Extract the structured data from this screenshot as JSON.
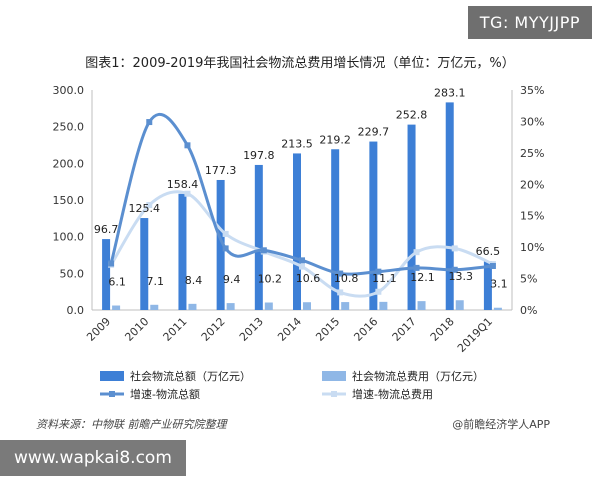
{
  "watermark_tag": "TG: MYYJJPP",
  "footer": {
    "source": "资料来源：中物联 前瞻产业研究院整理",
    "brand": "@前瞻经济学人APP",
    "url": "www.wapkai8.com"
  },
  "chart_data": {
    "type": "bar",
    "title": "图表1：2009-2019年我国社会物流总费用增长情况（单位：万亿元，%）",
    "categories": [
      "2009",
      "2010",
      "2011",
      "2012",
      "2013",
      "2014",
      "2015",
      "2016",
      "2017",
      "2018",
      "2019Q1"
    ],
    "y_left": {
      "lim": [
        0,
        300
      ],
      "ticks": [
        "0.0",
        "50.0",
        "100.0",
        "150.0",
        "200.0",
        "250.0",
        "300.0"
      ]
    },
    "y_right": {
      "lim": [
        0,
        35
      ],
      "ticks": [
        "0%",
        "5%",
        "10%",
        "15%",
        "20%",
        "25%",
        "30%",
        "35%"
      ]
    },
    "series": [
      {
        "name": "社会物流总额（万亿元）",
        "type": "bar",
        "axis": "left",
        "color": "#3d7fd6",
        "values": [
          96.7,
          125.4,
          158.4,
          177.3,
          197.8,
          213.5,
          219.2,
          229.7,
          252.8,
          283.1,
          66.5
        ],
        "labels": [
          "96.7",
          "125.4",
          "158.4",
          "177.3",
          "197.8",
          "213.5",
          "219.2",
          "229.7",
          "252.8",
          "283.1",
          "66.5"
        ]
      },
      {
        "name": "社会物流总费用（万亿元）",
        "type": "bar",
        "axis": "left",
        "color": "#8fb7e6",
        "values": [
          6.1,
          7.1,
          8.4,
          9.4,
          10.2,
          10.6,
          10.8,
          11.1,
          12.1,
          13.3,
          3.1
        ],
        "labels": [
          "6.1",
          "7.1",
          "8.4",
          "9.4",
          "10.2",
          "10.6",
          "10.8",
          "11.1",
          "12.1",
          "13.3",
          "3.1"
        ]
      },
      {
        "name": "增速-物流总额",
        "type": "line",
        "axis": "right",
        "color": "#5b8fd0",
        "values": [
          7.4,
          29.9,
          26.2,
          9.8,
          9.5,
          7.9,
          5.8,
          6.1,
          6.7,
          6.4,
          7.0
        ]
      },
      {
        "name": "增速-物流总费用",
        "type": "line",
        "axis": "right",
        "color": "#c9dcf2",
        "values": [
          7.2,
          16.7,
          18.5,
          12.1,
          9.3,
          6.9,
          2.8,
          2.9,
          9.2,
          9.8,
          7.3
        ]
      }
    ]
  }
}
